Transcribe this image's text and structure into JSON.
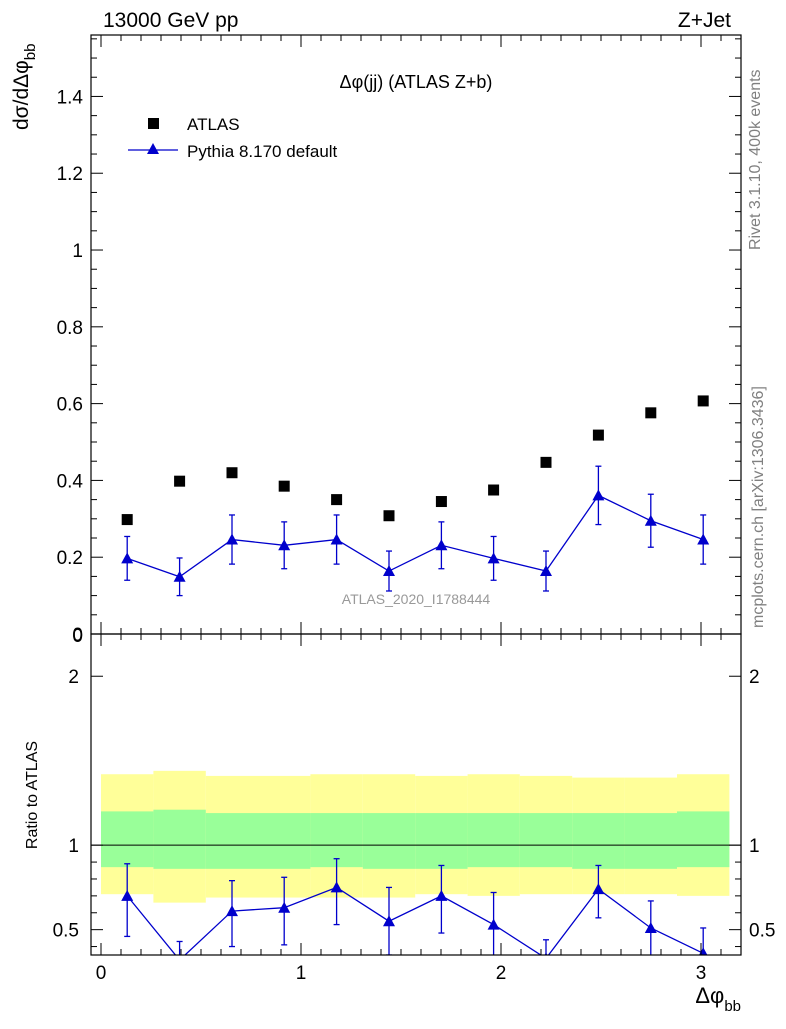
{
  "header": {
    "energy_label": "13000 GeV pp",
    "process_label": "Z+Jet"
  },
  "side_labels": {
    "rivet": "Rivet 3.1.10,  400k events",
    "mcplots": "mcplots.cern.ch [arXiv:1306.3436]"
  },
  "colors": {
    "data_marker": "#000000",
    "mc_line": "#0000cc",
    "band_outer": "#ffff99",
    "band_inner": "#99ff99",
    "watermark": "#999999",
    "side_text": "#808080"
  },
  "chart_data": [
    {
      "type": "scatter",
      "panel": "main",
      "title": "Δφ(jj) (ATLAS Z+b)",
      "analysis_id": "ATLAS_2020_I1788444",
      "ylabel": "dσ/dΔφ_bb",
      "xlim": [
        -0.05,
        3.2
      ],
      "ylim": [
        0,
        1.56
      ],
      "x_ticks": [
        0,
        1,
        2,
        3
      ],
      "y_ticks": [
        0,
        0.2,
        0.4,
        0.6,
        0.8,
        1,
        1.2,
        1.4
      ],
      "y_tick_labels": [
        "0",
        "0.2",
        "0.4",
        "0.6",
        "0.8",
        "1",
        "1.2",
        "1.4"
      ],
      "legend_position": "top-left",
      "series": [
        {
          "name": "ATLAS",
          "marker": "square",
          "x": [
            0.131,
            0.393,
            0.655,
            0.916,
            1.178,
            1.44,
            1.702,
            1.963,
            2.225,
            2.487,
            2.749,
            3.011
          ],
          "y": [
            0.298,
            0.398,
            0.42,
            0.385,
            0.35,
            0.308,
            0.345,
            0.375,
            0.447,
            0.518,
            0.576,
            0.607
          ]
        },
        {
          "name": "Pythia 8.170 default",
          "marker": "triangle",
          "x": [
            0.131,
            0.393,
            0.655,
            0.916,
            1.178,
            1.44,
            1.702,
            1.963,
            2.225,
            2.487,
            2.749,
            3.011
          ],
          "y": [
            0.197,
            0.149,
            0.246,
            0.231,
            0.246,
            0.164,
            0.231,
            0.197,
            0.164,
            0.361,
            0.295,
            0.246
          ],
          "err": [
            0.057,
            0.049,
            0.064,
            0.061,
            0.064,
            0.052,
            0.061,
            0.057,
            0.052,
            0.076,
            0.069,
            0.064
          ]
        }
      ]
    },
    {
      "type": "line",
      "panel": "ratio",
      "ylabel": "Ratio to ATLAS",
      "xlabel": "Δφ_bb",
      "xlim": [
        -0.05,
        3.2
      ],
      "ylim": [
        0.35,
        2.25
      ],
      "x_ticks": [
        0,
        1,
        2,
        3
      ],
      "x_tick_labels": [
        "0",
        "1",
        "2",
        "3"
      ],
      "y_ticks": [
        0.5,
        1,
        2
      ],
      "y_tick_labels": [
        "0.5",
        "1",
        "2"
      ],
      "bin_edges": [
        0,
        0.262,
        0.524,
        0.785,
        1.047,
        1.309,
        1.571,
        1.833,
        2.094,
        2.356,
        2.618,
        2.88,
        3.142
      ],
      "band_outer": {
        "low": [
          0.71,
          0.66,
          0.69,
          0.69,
          0.69,
          0.69,
          0.71,
          0.7,
          0.71,
          0.71,
          0.71,
          0.7
        ],
        "high": [
          1.42,
          1.44,
          1.41,
          1.41,
          1.42,
          1.42,
          1.41,
          1.42,
          1.41,
          1.4,
          1.4,
          1.42
        ]
      },
      "band_inner": {
        "low": [
          0.87,
          0.86,
          0.86,
          0.86,
          0.87,
          0.86,
          0.86,
          0.87,
          0.87,
          0.86,
          0.86,
          0.87
        ],
        "high": [
          1.2,
          1.21,
          1.19,
          1.19,
          1.19,
          1.19,
          1.19,
          1.19,
          1.19,
          1.19,
          1.19,
          1.2
        ]
      },
      "reference_line": 1,
      "series": [
        {
          "name": "Pythia 8.170 default",
          "x": [
            0.131,
            0.393,
            0.655,
            0.916,
            1.178,
            1.44,
            1.702,
            1.963,
            2.225,
            2.487,
            2.749,
            3.011
          ],
          "y": [
            0.7,
            0.32,
            0.61,
            0.63,
            0.75,
            0.55,
            0.7,
            0.53,
            0.33,
            0.74,
            0.51,
            0.36
          ],
          "err_low": [
            0.24,
            0.12,
            0.21,
            0.22,
            0.22,
            0.2,
            0.22,
            0.19,
            0.12,
            0.17,
            0.18,
            0.15
          ],
          "err_high": [
            0.19,
            0.11,
            0.18,
            0.18,
            0.17,
            0.2,
            0.18,
            0.19,
            0.11,
            0.14,
            0.16,
            0.15
          ]
        }
      ]
    }
  ]
}
